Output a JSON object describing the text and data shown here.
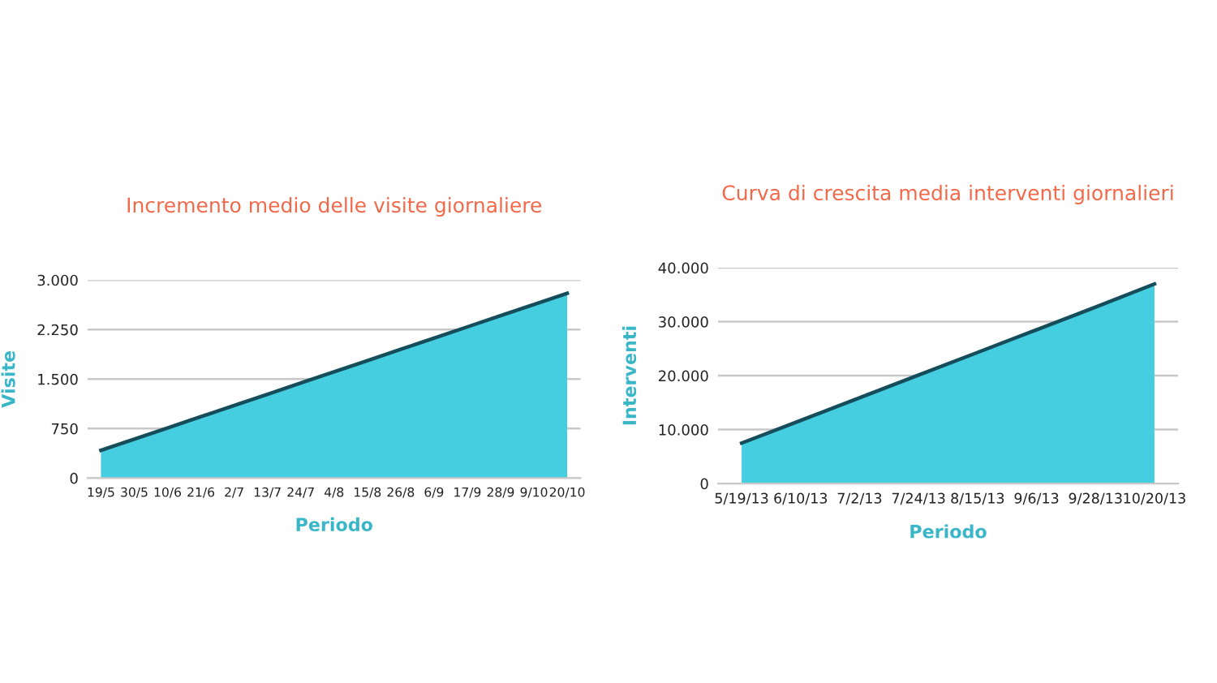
{
  "chart_data": [
    {
      "type": "area",
      "title": "Incremento medio delle visite giornaliere",
      "xlabel": "Periodo",
      "ylabel": "Visite",
      "categories": [
        "19/5",
        "30/5",
        "10/6",
        "21/6",
        "2/7",
        "13/7",
        "24/7",
        "4/8",
        "15/8",
        "26/8",
        "6/9",
        "17/9",
        "28/9",
        "9/10",
        "20/10"
      ],
      "series": [
        {
          "color": "#45cde0",
          "values": [
            420,
            590,
            760,
            930,
            1100,
            1270,
            1440,
            1610,
            1780,
            1950,
            2120,
            2290,
            2460,
            2630,
            2800
          ]
        }
      ],
      "ylim": [
        0,
        3000
      ],
      "yticks": [
        0,
        750,
        {
          "value": 1500,
          "label": "1.500"
        },
        {
          "value": 2250,
          "label": "2.250"
        },
        {
          "value": 3000,
          "label": "3.000"
        }
      ],
      "grid": "y"
    },
    {
      "type": "area",
      "title": "Curva di crescita media interventi giornalieri",
      "xlabel": "Periodo",
      "ylabel": "Interventi",
      "categories": [
        "5/19/13",
        "6/10/13",
        "7/2/13",
        "7/24/13",
        "8/15/13",
        "9/6/13",
        "9/28/13",
        "10/20/13"
      ],
      "series": [
        {
          "color": "#45cde0",
          "values": [
            7500,
            11700,
            15900,
            20100,
            24300,
            28500,
            32700,
            37000
          ]
        }
      ],
      "ylim": [
        0,
        40000
      ],
      "yticks": [
        0,
        {
          "value": 10000,
          "label": "10.000"
        },
        {
          "value": 20000,
          "label": "20.000"
        },
        {
          "value": 30000,
          "label": "30.000"
        },
        {
          "value": 40000,
          "label": "40.000"
        }
      ],
      "grid": "y"
    }
  ]
}
